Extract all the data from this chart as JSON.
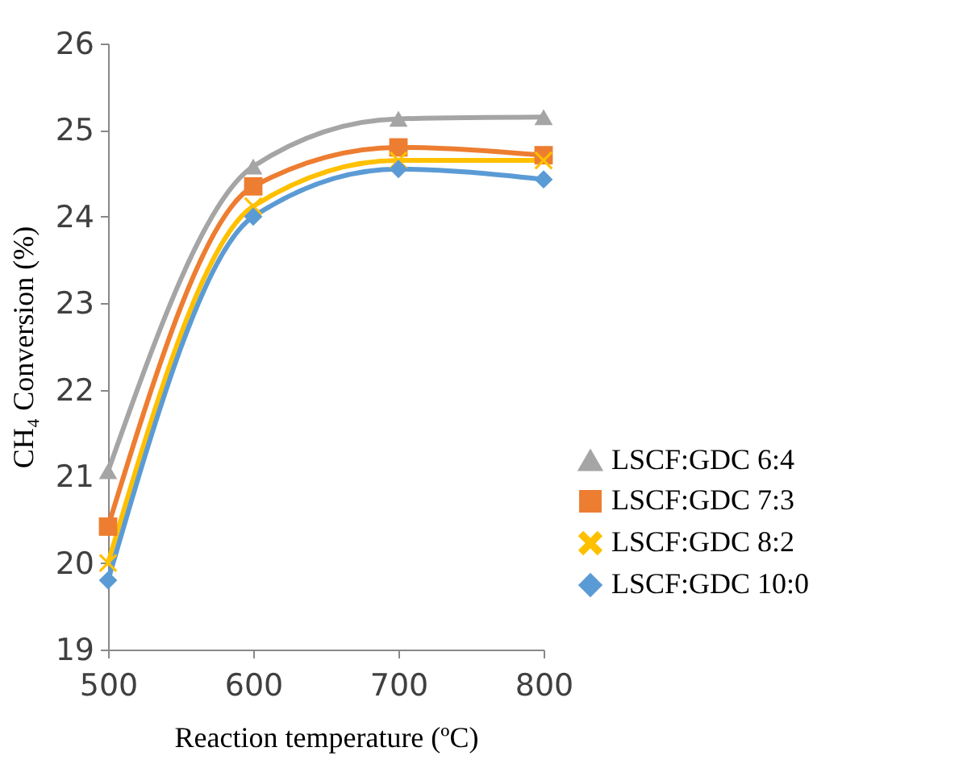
{
  "chart_data": {
    "type": "line",
    "xlabel": "Reaction temperature  (ºC)",
    "ylabel": "CH₄ Conversion (%)",
    "x": [
      500,
      600,
      700,
      800
    ],
    "xlim": [
      500,
      800
    ],
    "xticks": [
      500,
      600,
      700,
      800
    ],
    "ylim": [
      19,
      26
    ],
    "yticks": [
      19,
      20,
      21,
      22,
      23,
      24,
      25,
      26
    ],
    "grid": false,
    "legend": "right",
    "series": [
      {
        "name": "LSCF:GDC 6:4",
        "color": "#a5a5a5",
        "marker": "triangle",
        "values": [
          21.06,
          24.58,
          25.13,
          25.15
        ]
      },
      {
        "name": "LSCF:GDC 7:3",
        "color": "#ed7d31",
        "marker": "square",
        "values": [
          20.42,
          24.35,
          24.8,
          24.71
        ]
      },
      {
        "name": "LSCF:GDC 8:2",
        "color": "#ffc000",
        "marker": "cross",
        "values": [
          20.0,
          24.12,
          24.65,
          24.65
        ]
      },
      {
        "name": "LSCF:GDC 10:0",
        "color": "#5b9bd5",
        "marker": "diamond",
        "values": [
          19.8,
          24.0,
          24.55,
          24.43
        ]
      }
    ]
  }
}
